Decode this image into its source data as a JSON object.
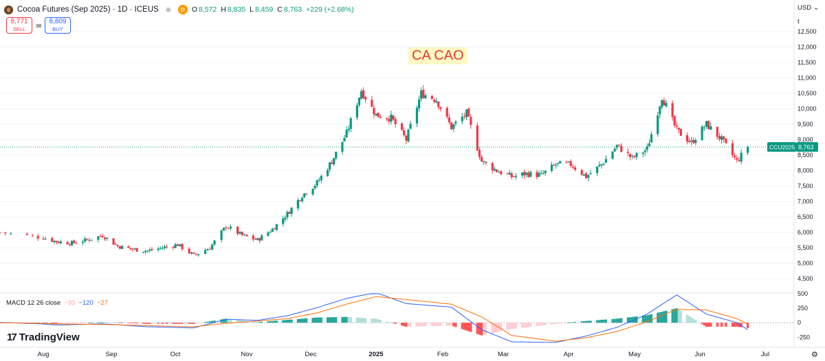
{
  "header": {
    "title": "Cocoa Futures (Sep 2025) · 1D · ICEUS",
    "interval_badge": "D",
    "ohlc": [
      {
        "key": "O",
        "value": "8,572"
      },
      {
        "key": "H",
        "value": "8,835"
      },
      {
        "key": "L",
        "value": "8,459"
      },
      {
        "key": "C",
        "value": "8,763"
      },
      {
        "key": "",
        "value": "+229 (+2.68%)"
      }
    ],
    "accent_up": "#089981",
    "accent_down": "#f23645"
  },
  "trade": {
    "sell_price": "8,771",
    "sell_label": "SELL",
    "spread": "38",
    "buy_price": "8,809",
    "buy_label": "BUY"
  },
  "scale": {
    "currency": "USD",
    "unit": "t"
  },
  "annotation": "CA CAO",
  "macd": {
    "name": "MACD 12 26 close",
    "hist": "−93",
    "macd": "−120",
    "signal": "−27"
  },
  "logo": {
    "mark": "17",
    "text": "TradingView"
  },
  "chart_data": {
    "type": "candlestick",
    "symbol_tag": "CCU2025",
    "last_price": 8763,
    "last_price_label": "8,763",
    "y_ticks": [
      4500,
      5000,
      5500,
      6000,
      6500,
      7000,
      7500,
      8000,
      8500,
      9000,
      9500,
      10000,
      10500,
      11000,
      11500,
      12000,
      12500
    ],
    "y_tick_labels": [
      "4,500",
      "5,000",
      "5,500",
      "6,000",
      "6,500",
      "7,000",
      "7,500",
      "8,000",
      "8,500",
      "9,000",
      "9,500",
      "10,000",
      "10,500",
      "11,000",
      "11,500",
      "12,000",
      "12,500"
    ],
    "ylim": [
      4100,
      12900
    ],
    "x_labels": [
      "Aug",
      "Sep",
      "Oct",
      "Nov",
      "Dec",
      "2025",
      "Feb",
      "Mar",
      "Apr",
      "May",
      "Jun",
      "Jul"
    ],
    "x_label_dates": [
      "2024-08-01",
      "2024-09-01",
      "2024-10-01",
      "2024-11-01",
      "2024-12-01",
      "2025-01-01",
      "2025-02-01",
      "2025-03-01",
      "2025-04-01",
      "2025-05-01",
      "2025-06-01",
      "2025-07-01"
    ],
    "price_series": [
      {
        "date": "2024-07-24",
        "close": 6000
      },
      {
        "date": "2024-07-31",
        "close": 5850
      },
      {
        "date": "2024-08-07",
        "close": 5700
      },
      {
        "date": "2024-08-14",
        "close": 5650
      },
      {
        "date": "2024-08-21",
        "close": 5750
      },
      {
        "date": "2024-08-28",
        "close": 5900
      },
      {
        "date": "2024-09-04",
        "close": 5550
      },
      {
        "date": "2024-09-11",
        "close": 5450
      },
      {
        "date": "2024-09-18",
        "close": 5400
      },
      {
        "date": "2024-09-25",
        "close": 5500
      },
      {
        "date": "2024-10-02",
        "close": 5600
      },
      {
        "date": "2024-10-09",
        "close": 5250
      },
      {
        "date": "2024-10-16",
        "close": 5500
      },
      {
        "date": "2024-10-23",
        "close": 6200
      },
      {
        "date": "2024-10-30",
        "close": 5900
      },
      {
        "date": "2024-11-06",
        "close": 5750
      },
      {
        "date": "2024-11-13",
        "close": 6100
      },
      {
        "date": "2024-11-20",
        "close": 6600
      },
      {
        "date": "2024-11-27",
        "close": 7200
      },
      {
        "date": "2024-12-04",
        "close": 7600
      },
      {
        "date": "2024-12-11",
        "close": 8300
      },
      {
        "date": "2024-12-18",
        "close": 9200
      },
      {
        "date": "2024-12-25",
        "close": 10600
      },
      {
        "date": "2025-01-01",
        "close": 9800
      },
      {
        "date": "2025-01-08",
        "close": 9700
      },
      {
        "date": "2025-01-15",
        "close": 9000
      },
      {
        "date": "2025-01-22",
        "close": 10500
      },
      {
        "date": "2025-01-29",
        "close": 10300
      },
      {
        "date": "2025-02-05",
        "close": 9400
      },
      {
        "date": "2025-02-12",
        "close": 9850
      },
      {
        "date": "2025-02-19",
        "close": 8300
      },
      {
        "date": "2025-02-26",
        "close": 8000
      },
      {
        "date": "2025-03-05",
        "close": 7800
      },
      {
        "date": "2025-03-12",
        "close": 7900
      },
      {
        "date": "2025-03-19",
        "close": 7850
      },
      {
        "date": "2025-03-26",
        "close": 8200
      },
      {
        "date": "2025-04-02",
        "close": 8200
      },
      {
        "date": "2025-04-09",
        "close": 7800
      },
      {
        "date": "2025-04-16",
        "close": 8200
      },
      {
        "date": "2025-04-23",
        "close": 8800
      },
      {
        "date": "2025-04-30",
        "close": 8400
      },
      {
        "date": "2025-05-07",
        "close": 8700
      },
      {
        "date": "2025-05-14",
        "close": 10400
      },
      {
        "date": "2025-05-21",
        "close": 9300
      },
      {
        "date": "2025-05-28",
        "close": 8900
      },
      {
        "date": "2025-06-04",
        "close": 9500
      },
      {
        "date": "2025-06-11",
        "close": 9000
      },
      {
        "date": "2025-06-18",
        "close": 8300
      },
      {
        "date": "2025-06-23",
        "close": 8763
      }
    ],
    "macd_ticks": [
      -250,
      0,
      250,
      500
    ],
    "macd_tick_labels": [
      "-250",
      "0",
      "250",
      "500"
    ],
    "macd_ylim": [
      -400,
      500
    ],
    "macd_series": [
      {
        "date": "2024-07-24",
        "macd": 5,
        "signal": 0
      },
      {
        "date": "2024-08-07",
        "macd": -40,
        "signal": -20
      },
      {
        "date": "2024-08-28",
        "macd": -20,
        "signal": -30
      },
      {
        "date": "2024-09-18",
        "macd": -70,
        "signal": -50
      },
      {
        "date": "2024-10-09",
        "macd": -90,
        "signal": -70
      },
      {
        "date": "2024-10-23",
        "macd": 60,
        "signal": -10
      },
      {
        "date": "2024-11-06",
        "macd": 40,
        "signal": 30
      },
      {
        "date": "2024-11-20",
        "macd": 120,
        "signal": 70
      },
      {
        "date": "2024-12-04",
        "macd": 260,
        "signal": 170
      },
      {
        "date": "2024-12-18",
        "macd": 420,
        "signal": 320
      },
      {
        "date": "2025-01-01",
        "macd": 520,
        "signal": 450
      },
      {
        "date": "2025-01-15",
        "macd": 330,
        "signal": 400
      },
      {
        "date": "2025-02-05",
        "macd": 270,
        "signal": 320
      },
      {
        "date": "2025-02-19",
        "macd": -120,
        "signal": 100
      },
      {
        "date": "2025-03-05",
        "macd": -330,
        "signal": -220
      },
      {
        "date": "2025-03-26",
        "macd": -340,
        "signal": -320
      },
      {
        "date": "2025-04-09",
        "macd": -230,
        "signal": -260
      },
      {
        "date": "2025-04-23",
        "macd": -80,
        "signal": -150
      },
      {
        "date": "2025-05-07",
        "macd": 150,
        "signal": 20
      },
      {
        "date": "2025-05-21",
        "macd": 480,
        "signal": 230
      },
      {
        "date": "2025-06-04",
        "macd": 150,
        "signal": 220
      },
      {
        "date": "2025-06-18",
        "macd": 0,
        "signal": 70
      },
      {
        "date": "2025-06-23",
        "macd": -120,
        "signal": -27
      }
    ],
    "colors": {
      "up": "#089981",
      "down": "#f23645",
      "macd_line": "#2962ff",
      "signal_line": "#ff6d00",
      "hist_up_strong": "#26a69a",
      "hist_up_weak": "#b2dfdb",
      "hist_down_strong": "#ff5252",
      "hist_down_weak": "#ffcdd2"
    }
  }
}
